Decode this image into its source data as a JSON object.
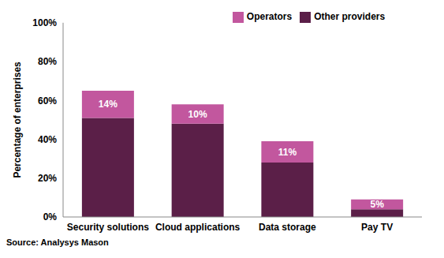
{
  "chart_data": {
    "type": "bar",
    "stacked": true,
    "y_label": "Percentage of enterprises",
    "source": "Source: Analysys Mason",
    "categories": [
      "Security solutions",
      "Cloud applications",
      "Data storage",
      "Pay TV"
    ],
    "series": [
      {
        "name": "Other providers",
        "color": "#5b1f48",
        "values": [
          51,
          48,
          28,
          4
        ]
      },
      {
        "name": "Operators",
        "color": "#c2579e",
        "values": [
          14,
          10,
          11,
          5
        ],
        "value_labels": [
          "14%",
          "10%",
          "11%",
          "5%"
        ]
      }
    ],
    "ylim": [
      0,
      100
    ],
    "yticks": [
      {
        "value": 0,
        "label": "0%"
      },
      {
        "value": 20,
        "label": "20%"
      },
      {
        "value": 40,
        "label": "40%"
      },
      {
        "value": 60,
        "label": "60%"
      },
      {
        "value": 80,
        "label": "80%"
      },
      {
        "value": 100,
        "label": "100%"
      }
    ],
    "grid": false,
    "legend": "top",
    "data_labels": true
  }
}
